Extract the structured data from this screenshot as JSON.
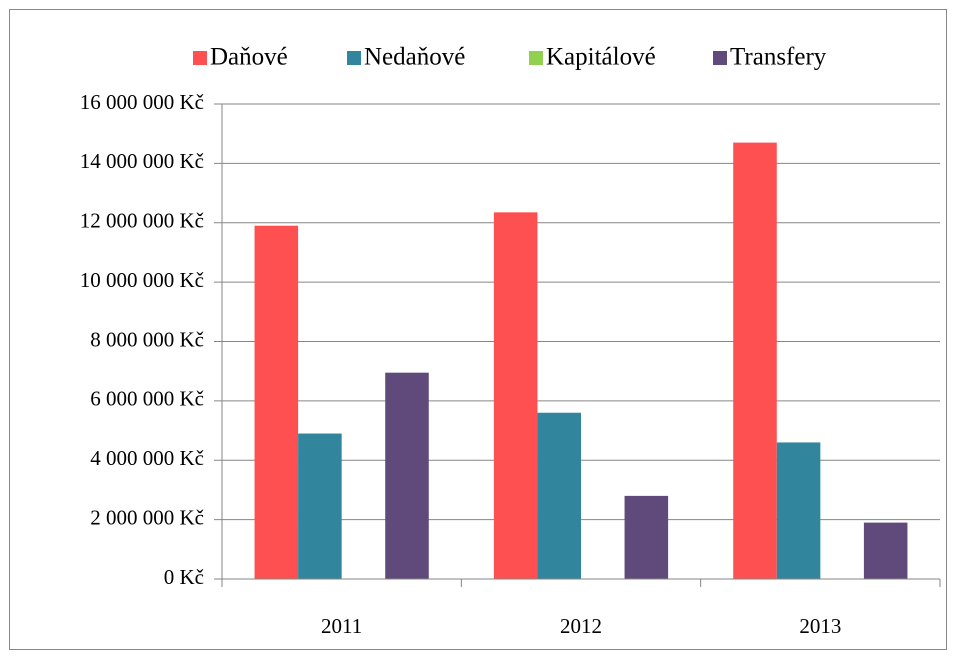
{
  "chart_data": {
    "type": "bar",
    "categories": [
      "2011",
      "2012",
      "2013"
    ],
    "series": [
      {
        "name": "Daňové",
        "color": "#fe5050",
        "values": [
          11900000,
          12350000,
          14700000
        ]
      },
      {
        "name": "Nedaňové",
        "color": "#31859c",
        "values": [
          4900000,
          5600000,
          4600000
        ]
      },
      {
        "name": "Kapitálové",
        "color": "#92d050",
        "values": [
          0,
          0,
          0
        ]
      },
      {
        "name": "Transfery",
        "color": "#604a7b",
        "values": [
          6950000,
          2800000,
          1900000
        ]
      }
    ],
    "ylim": [
      0,
      16000000
    ],
    "yticks": [
      {
        "value": 0,
        "label": "0 Kč"
      },
      {
        "value": 2000000,
        "label": "2 000 000 Kč"
      },
      {
        "value": 4000000,
        "label": "4 000 000 Kč"
      },
      {
        "value": 6000000,
        "label": "6 000 000 Kč"
      },
      {
        "value": 8000000,
        "label": "8 000 000 Kč"
      },
      {
        "value": 10000000,
        "label": "10 000 000 Kč"
      },
      {
        "value": 12000000,
        "label": "12 000 000 Kč"
      },
      {
        "value": 14000000,
        "label": "14 000 000 Kč"
      },
      {
        "value": 16000000,
        "label": "16 000 000 Kč"
      }
    ],
    "grid": true,
    "legend": "top"
  }
}
